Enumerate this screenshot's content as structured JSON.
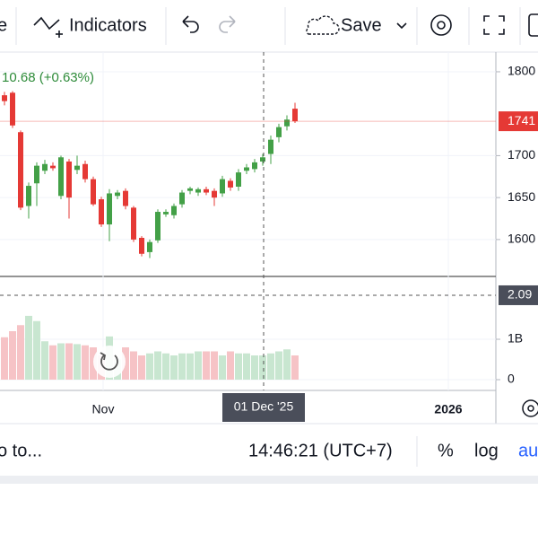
{
  "toolbar": {
    "left_text": "e",
    "indicators": "Indicators",
    "save": "Save"
  },
  "legend_change": "10.68 (+0.63%)",
  "chart_data": {
    "type": "candlestick",
    "open": [
      1772,
      1775,
      1728,
      1640,
      1667,
      1682,
      1688,
      1652,
      1693,
      1683,
      1690,
      1672,
      1648,
      1618,
      1652,
      1658,
      1638,
      1602,
      1585,
      1599,
      1630,
      1629,
      1642,
      1658,
      1656,
      1660,
      1658,
      1655,
      1670,
      1663,
      1682,
      1684,
      1693,
      1702,
      1722,
      1735,
      1756
    ],
    "high": [
      1776,
      1777,
      1730,
      1668,
      1692,
      1695,
      1692,
      1700,
      1696,
      1700,
      1694,
      1675,
      1651,
      1660,
      1659,
      1661,
      1640,
      1604,
      1600,
      1636,
      1636,
      1643,
      1659,
      1663,
      1662,
      1663,
      1661,
      1676,
      1673,
      1684,
      1690,
      1696,
      1702,
      1724,
      1738,
      1748,
      1763
    ],
    "low": [
      1760,
      1733,
      1635,
      1625,
      1640,
      1678,
      1682,
      1648,
      1625,
      1678,
      1668,
      1640,
      1615,
      1598,
      1648,
      1636,
      1597,
      1580,
      1578,
      1596,
      1627,
      1625,
      1638,
      1654,
      1652,
      1653,
      1640,
      1651,
      1658,
      1658,
      1678,
      1680,
      1688,
      1690,
      1716,
      1730,
      1739
    ],
    "close": [
      1765,
      1736,
      1638,
      1664,
      1688,
      1690,
      1685,
      1698,
      1650,
      1688,
      1672,
      1642,
      1618,
      1655,
      1656,
      1640,
      1600,
      1583,
      1597,
      1633,
      1633,
      1640,
      1656,
      1661,
      1660,
      1656,
      1650,
      1672,
      1662,
      1680,
      1686,
      1692,
      1698,
      1719,
      1734,
      1743,
      1741
    ],
    "volume": [
      1.05,
      1.2,
      1.35,
      1.58,
      1.45,
      0.95,
      0.85,
      0.9,
      0.9,
      0.88,
      0.85,
      0.8,
      0.6,
      1.07,
      0.5,
      0.8,
      0.7,
      0.6,
      0.65,
      0.7,
      0.65,
      0.6,
      0.65,
      0.65,
      0.7,
      0.7,
      0.7,
      0.6,
      0.7,
      0.65,
      0.65,
      0.6,
      0.6,
      0.65,
      0.7,
      0.75,
      0.6
    ],
    "up_color": "#43a047",
    "down_color": "#e53935",
    "up_volume_color": "#c8e6d0",
    "down_volume_color": "#f6c3c6",
    "ylim": [
      1556,
      1823.5
    ],
    "yticks": [
      1600,
      1650,
      1700,
      1800
    ],
    "last_price": 1741,
    "volume_lim": [
      -0.267,
      2.556
    ],
    "volume_ticks": [
      0,
      {
        "value": 1,
        "label": "1B"
      }
    ],
    "crosshair_volume": 2.09,
    "x_labels": [
      "Nov",
      "01 Dec '25",
      "2026"
    ]
  },
  "bottom_bar": {
    "goto": "o to...",
    "time": "14:46:21 (UTC+7)",
    "percent": "%",
    "log": "log",
    "auto": "au"
  }
}
